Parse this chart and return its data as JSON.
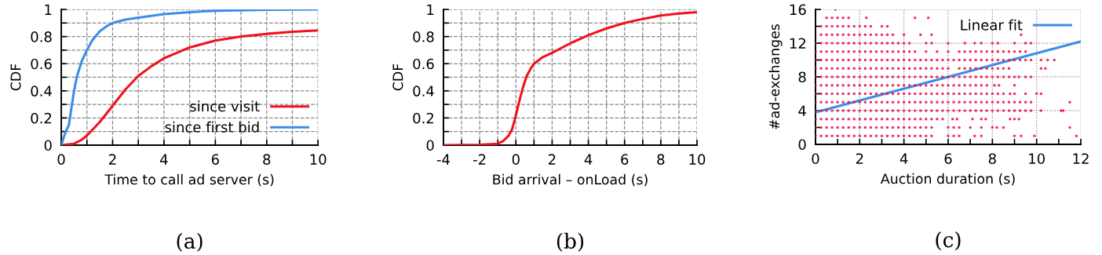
{
  "chart_data": [
    {
      "type": "line",
      "xlabel": "Time to call ad server (s)",
      "ylabel": "CDF",
      "annotations": [
        "(a)"
      ],
      "legend": "bottom right",
      "grid": true,
      "xlim": [
        0,
        10
      ],
      "ylim": [
        0,
        1
      ],
      "xticks": [
        0,
        {
          "value": 1,
          "label": null
        },
        2,
        {
          "value": 3,
          "label": null
        },
        4,
        {
          "value": 5,
          "label": null
        },
        6,
        {
          "value": 7,
          "label": null
        },
        8,
        {
          "value": 9,
          "label": null
        },
        10
      ],
      "yticks": [
        0,
        {
          "value": 0.1,
          "label": null
        },
        0.2,
        {
          "value": 0.3,
          "label": null
        },
        0.4,
        {
          "value": 0.5,
          "label": null
        },
        0.6,
        {
          "value": 0.7,
          "label": null
        },
        0.8,
        {
          "value": 0.9,
          "label": null
        },
        1
      ],
      "series": [
        {
          "name": "since visit",
          "color": "#f2111c",
          "x": [
            0,
            0.5,
            0.8,
            1,
            1.5,
            2,
            2.5,
            3,
            3.5,
            4,
            4.5,
            5,
            6,
            7,
            8,
            9,
            10
          ],
          "values": [
            0,
            0.01,
            0.04,
            0.07,
            0.17,
            0.29,
            0.41,
            0.51,
            0.58,
            0.64,
            0.68,
            0.72,
            0.77,
            0.8,
            0.82,
            0.835,
            0.845
          ]
        },
        {
          "name": "since first bid",
          "color": "#3a8ee6",
          "x": [
            0,
            0.1,
            0.2,
            0.3,
            0.4,
            0.5,
            0.6,
            0.8,
            1,
            1.2,
            1.5,
            1.8,
            2,
            2.5,
            3,
            4,
            5,
            6,
            8,
            10
          ],
          "values": [
            0,
            0.06,
            0.11,
            0.15,
            0.28,
            0.4,
            0.5,
            0.62,
            0.7,
            0.77,
            0.84,
            0.88,
            0.9,
            0.925,
            0.94,
            0.965,
            0.98,
            0.99,
            0.997,
            1
          ]
        }
      ]
    },
    {
      "type": "line",
      "xlabel": "Bid arrival – onLoad (s)",
      "ylabel": "CDF",
      "annotations": [
        "(b)"
      ],
      "grid": true,
      "xlim": [
        -4,
        10
      ],
      "ylim": [
        0,
        1
      ],
      "xticks": [
        -4,
        {
          "value": -3,
          "label": null
        },
        -2,
        {
          "value": -1,
          "label": null
        },
        0,
        {
          "value": 1,
          "label": null
        },
        2,
        {
          "value": 3,
          "label": null
        },
        4,
        {
          "value": 5,
          "label": null
        },
        6,
        {
          "value": 7,
          "label": null
        },
        8,
        {
          "value": 9,
          "label": null
        },
        10
      ],
      "yticks": [
        0,
        {
          "value": 0.1,
          "label": null
        },
        0.2,
        {
          "value": 0.3,
          "label": null
        },
        0.4,
        {
          "value": 0.5,
          "label": null
        },
        0.6,
        {
          "value": 0.7,
          "label": null
        },
        0.8,
        {
          "value": 0.9,
          "label": null
        },
        1
      ],
      "series": [
        {
          "color": "#f2111c",
          "x": [
            -4,
            -2,
            -1,
            -0.7,
            -0.4,
            -0.2,
            0,
            0.2,
            0.4,
            0.6,
            0.8,
            1,
            1.5,
            2,
            3,
            4,
            5,
            6,
            7,
            8,
            9,
            10
          ],
          "values": [
            0,
            0.003,
            0.01,
            0.03,
            0.07,
            0.12,
            0.22,
            0.33,
            0.43,
            0.51,
            0.56,
            0.6,
            0.65,
            0.68,
            0.75,
            0.81,
            0.86,
            0.9,
            0.93,
            0.955,
            0.97,
            0.98
          ]
        }
      ]
    },
    {
      "type": "scatter",
      "xlabel": "Auction duration (s)",
      "ylabel": "#ad-exchanges",
      "annotations": [
        "(c)"
      ],
      "legend": "top right",
      "grid": true,
      "xlim": [
        0,
        12
      ],
      "ylim": [
        0,
        16
      ],
      "xticks": [
        0,
        {
          "value": 1,
          "label": null
        },
        2,
        {
          "value": 3,
          "label": null
        },
        4,
        {
          "value": 5,
          "label": null
        },
        6,
        {
          "value": 7,
          "label": null
        },
        8,
        {
          "value": 9,
          "label": null
        },
        10,
        {
          "value": 11,
          "label": null
        },
        12
      ],
      "yticks": [
        0,
        {
          "value": 2,
          "label": null
        },
        4,
        {
          "value": 6,
          "label": null
        },
        8,
        {
          "value": 10,
          "label": null
        },
        12,
        {
          "value": 14,
          "label": null
        },
        16
      ],
      "series": [
        {
          "color": "#f0144b",
          "x": [
            0,
            0.25,
            0.5,
            0.75,
            1,
            1.25,
            1.5,
            1.75,
            2,
            2.25,
            2.5,
            2.75,
            3,
            3.25,
            3.5,
            3.75,
            4,
            4.25,
            4.5,
            4.75,
            5,
            5.25,
            6,
            6.25,
            6.5,
            7.2,
            7.5,
            9,
            9.3,
            9.9,
            11.8
          ],
          "values": [
            1,
            1,
            1,
            1,
            1,
            1,
            1,
            1,
            1,
            1,
            1,
            1,
            1,
            1,
            1,
            1,
            1,
            1,
            1,
            1,
            1,
            1,
            1,
            1,
            1,
            1,
            1,
            1,
            1,
            1,
            1
          ]
        },
        {
          "color": "#f0144b",
          "x": [
            0,
            0.25,
            0.5,
            0.75,
            1,
            1.25,
            1.5,
            1.75,
            2,
            2.25,
            2.5,
            2.75,
            3,
            3.25,
            3.5,
            3.75,
            4,
            4.25,
            4.5,
            4.75,
            5,
            5.25,
            6,
            6.25,
            6.5,
            7,
            7.5,
            8,
            8.2,
            8.5,
            11.5
          ],
          "values": [
            2,
            2,
            2,
            2,
            2,
            2,
            2,
            2,
            2,
            2,
            2,
            2,
            2,
            2,
            2,
            2,
            2,
            2,
            2,
            2,
            2,
            2,
            2,
            2,
            2,
            2,
            2,
            2,
            2,
            2,
            2
          ]
        },
        {
          "color": "#f0144b",
          "x": [
            0,
            0.25,
            0.5,
            0.75,
            1,
            1.25,
            1.5,
            1.75,
            2,
            2.25,
            2.5,
            2.75,
            3,
            3.25,
            3.5,
            3.75,
            4,
            4.25,
            4.5,
            4.75,
            5,
            5.25,
            5.5,
            5.75,
            6.2,
            6.4,
            7.1,
            7.5,
            7.7,
            8.8,
            9,
            9.2
          ],
          "values": [
            3,
            3,
            3,
            3,
            3,
            3,
            3,
            3,
            3,
            3,
            3,
            3,
            3,
            3,
            3,
            3,
            3,
            3,
            3,
            3,
            3,
            3,
            3,
            3,
            3,
            3,
            3,
            3,
            3,
            3,
            3,
            3
          ]
        },
        {
          "color": "#f0144b",
          "x": [
            0,
            0.25,
            0.5,
            0.75,
            1,
            1.25,
            1.5,
            1.75,
            2,
            2.25,
            2.5,
            2.75,
            3,
            3.25,
            3.5,
            3.75,
            4,
            4.25,
            4.5,
            4.75,
            5,
            5.25,
            5.5,
            5.75,
            6,
            6.25,
            6.5,
            6.75,
            7,
            7.25,
            7.5,
            7.75,
            8,
            8.25,
            8.5,
            8.75,
            9,
            9.25,
            9.5,
            9.75,
            10.2,
            11.1,
            11.2
          ],
          "values": [
            4,
            4,
            4,
            4,
            4,
            4,
            4,
            4,
            4,
            4,
            4,
            4,
            4,
            4,
            4,
            4,
            4,
            4,
            4,
            4,
            4,
            4,
            4,
            4,
            4,
            4,
            4,
            4,
            4,
            4,
            4,
            4,
            4,
            4,
            4,
            4,
            4,
            4,
            4,
            4,
            4,
            4,
            4
          ]
        },
        {
          "color": "#f0144b",
          "x": [
            0,
            0.25,
            0.5,
            0.75,
            1,
            1.25,
            1.5,
            1.75,
            2,
            2.25,
            2.5,
            2.75,
            3,
            3.25,
            3.5,
            3.75,
            4,
            4.25,
            4.5,
            4.75,
            5,
            5.25,
            5.5,
            5.75,
            6,
            6.25,
            6.5,
            6.75,
            7,
            7.25,
            7.5,
            7.75,
            8,
            8.25,
            8.5,
            8.75,
            9,
            9.25,
            9.5,
            9.75,
            11.5
          ],
          "values": [
            5,
            5,
            5,
            5,
            5,
            5,
            5,
            5,
            5,
            5,
            5,
            5,
            5,
            5,
            5,
            5,
            5,
            5,
            5,
            5,
            5,
            5,
            5,
            5,
            5,
            5,
            5,
            5,
            5,
            5,
            5,
            5,
            5,
            5,
            5,
            5,
            5,
            5,
            5,
            5,
            5
          ]
        },
        {
          "color": "#f0144b",
          "x": [
            0,
            0.25,
            0.5,
            0.75,
            1,
            1.25,
            1.5,
            1.75,
            2,
            2.25,
            2.5,
            2.75,
            3,
            3.25,
            3.5,
            3.75,
            4,
            4.25,
            4.5,
            4.75,
            5,
            5.25,
            5.5,
            5.75,
            6,
            6.25,
            6.5,
            6.75,
            7,
            7.25,
            7.5,
            7.75,
            8,
            8.25,
            8.5,
            8.8,
            9,
            9.5,
            10,
            10.2
          ],
          "values": [
            6,
            6,
            6,
            6,
            6,
            6,
            6,
            6,
            6,
            6,
            6,
            6,
            6,
            6,
            6,
            6,
            6,
            6,
            6,
            6,
            6,
            6,
            6,
            6,
            6,
            6,
            6,
            6,
            6,
            6,
            6,
            6,
            6,
            6,
            6,
            6,
            6,
            6,
            6,
            6
          ]
        },
        {
          "color": "#f0144b",
          "x": [
            0,
            0.25,
            0.5,
            0.75,
            1,
            1.25,
            1.5,
            1.75,
            2,
            2.25,
            2.5,
            2.75,
            3,
            3.25,
            3.5,
            3.75,
            4,
            4.25,
            4.5,
            4.75,
            5,
            5.25,
            5.5,
            5.75,
            6,
            6.25,
            6.5,
            6.75,
            7,
            7.25,
            7.5,
            7.75,
            8.1,
            8.3,
            9
          ],
          "values": [
            7,
            7,
            7,
            7,
            7,
            7,
            7,
            7,
            7,
            7,
            7,
            7,
            7,
            7,
            7,
            7,
            7,
            7,
            7,
            7,
            7,
            7,
            7,
            7,
            7,
            7,
            7,
            7,
            7,
            7,
            7,
            7,
            7,
            7,
            7
          ]
        },
        {
          "color": "#f0144b",
          "x": [
            0,
            0.25,
            0.5,
            0.75,
            1,
            1.25,
            1.5,
            1.75,
            2,
            2.25,
            2.5,
            2.75,
            3,
            3.25,
            3.5,
            3.75,
            4,
            4.25,
            4.5,
            4.75,
            5,
            5.25,
            5.5,
            5.75,
            6,
            6.25,
            6.5,
            6.75,
            7,
            7.25,
            7.5,
            7.75,
            8,
            8.25,
            8.5,
            8.75,
            9,
            9.2,
            9.5,
            9.75
          ],
          "values": [
            8,
            8,
            8,
            8,
            8,
            8,
            8,
            8,
            8,
            8,
            8,
            8,
            8,
            8,
            8,
            8,
            8,
            8,
            8,
            8,
            8,
            8,
            8,
            8,
            8,
            8,
            8,
            8,
            8,
            8,
            8,
            8,
            8,
            8,
            8,
            8,
            8,
            8,
            8,
            8
          ]
        },
        {
          "color": "#f0144b",
          "x": [
            0,
            0.25,
            0.5,
            0.75,
            1,
            1.25,
            1.5,
            1.75,
            2,
            2.25,
            2.5,
            2.75,
            3,
            3.25,
            3.5,
            3.75,
            4,
            4.25,
            4.5,
            4.75,
            5,
            5.25,
            5.5,
            5.75,
            6,
            6.5,
            6.75,
            7,
            7.25,
            7.5,
            7.75,
            8,
            8.25,
            8.5,
            8.75,
            10.2,
            10.4
          ],
          "values": [
            9,
            9,
            9,
            9,
            9,
            9,
            9,
            9,
            9,
            9,
            9,
            9,
            9,
            9,
            9,
            9,
            9,
            9,
            9,
            9,
            9,
            9,
            9,
            9,
            9,
            9,
            9,
            9,
            9,
            9,
            9,
            9,
            9,
            9,
            9,
            9,
            9
          ]
        },
        {
          "color": "#f0144b",
          "x": [
            0,
            0.25,
            0.5,
            0.75,
            1,
            1.25,
            1.5,
            1.75,
            2,
            2.25,
            2.5,
            2.75,
            3,
            3.25,
            3.5,
            3.75,
            4,
            4.25,
            4.5,
            4.75,
            5,
            5.25,
            5.5,
            5.75,
            6,
            6.25,
            6.5,
            6.75,
            7,
            7.25,
            7.5,
            7.75,
            8,
            8.25,
            8.5,
            8.75,
            9,
            9.25,
            9.5,
            9.75,
            10.2,
            10.5,
            10.8
          ],
          "values": [
            10,
            10,
            10,
            10,
            10,
            10,
            10,
            10,
            10,
            10,
            10,
            10,
            10,
            10,
            10,
            10,
            10,
            10,
            10,
            10,
            10,
            10,
            10,
            10,
            10,
            10,
            10,
            10,
            10,
            10,
            10,
            10,
            10,
            10,
            10,
            10,
            10,
            10,
            10,
            10,
            10,
            10,
            10
          ]
        },
        {
          "color": "#f0144b",
          "x": [
            0,
            0.25,
            0.5,
            0.75,
            1,
            1.25,
            1.5,
            1.75,
            2,
            2.25,
            2.5,
            2.75,
            3,
            3.25,
            3.5,
            3.75,
            4,
            4.25,
            4.5,
            5,
            5.5,
            6,
            6.5,
            6.75,
            7,
            7.25,
            7.5,
            7.75,
            8,
            8.25,
            8.5,
            8.75,
            9,
            9.25,
            9.5
          ],
          "values": [
            11,
            11,
            11,
            11,
            11,
            11,
            11,
            11,
            11,
            11,
            11,
            11,
            11,
            11,
            11,
            11,
            11,
            11,
            11,
            11,
            11,
            11,
            11,
            11,
            11,
            11,
            11,
            11,
            11,
            11,
            11,
            11,
            11,
            11,
            11
          ]
        },
        {
          "color": "#f0144b",
          "x": [
            0,
            0.25,
            0.5,
            0.75,
            1,
            1.25,
            1.5,
            1.75,
            2,
            2.25,
            2.5,
            2.75,
            3,
            3.25,
            3.5,
            3.75,
            4,
            4.25,
            5,
            5.25,
            6,
            6.75,
            7.2,
            7.5,
            8,
            8.25,
            9,
            9.5,
            9.75
          ],
          "values": [
            12,
            12,
            12,
            12,
            12,
            12,
            12,
            12,
            12,
            12,
            12,
            12,
            12,
            12,
            12,
            12,
            12,
            12,
            12,
            12,
            12,
            12,
            12,
            12,
            12,
            12,
            12,
            12,
            12
          ]
        },
        {
          "color": "#f0144b",
          "x": [
            0.25,
            0.5,
            0.75,
            1,
            1.25,
            1.5,
            1.75,
            2,
            2.25,
            2.5,
            2.75,
            3,
            3.25,
            3.5,
            4,
            4.75,
            5.25,
            9.3
          ],
          "values": [
            13,
            13,
            13,
            13,
            13,
            13,
            13,
            13,
            13,
            13,
            13,
            13,
            13,
            13,
            13,
            13,
            13,
            13
          ]
        },
        {
          "color": "#f0144b",
          "x": [
            0.25,
            0.5,
            0.75,
            1,
            1.25,
            1.5,
            1.75,
            2,
            2.25,
            2.5,
            3,
            3.25
          ],
          "values": [
            14,
            14,
            14,
            14,
            14,
            14,
            14,
            14,
            14,
            14,
            14,
            14
          ]
        },
        {
          "color": "#f0144b",
          "x": [
            0.5,
            0.75,
            1,
            1.25,
            1.5,
            2.3,
            4.5,
            5.1
          ],
          "values": [
            15,
            15,
            15,
            15,
            15,
            15,
            15,
            15
          ]
        },
        {
          "color": "#f0144b",
          "x": [
            0.9
          ],
          "values": [
            16
          ]
        },
        {
          "type": "line",
          "name": "Linear fit",
          "color": "#3a8ee6",
          "x": [
            0,
            12
          ],
          "values": [
            3.8,
            12.2
          ]
        }
      ]
    }
  ]
}
